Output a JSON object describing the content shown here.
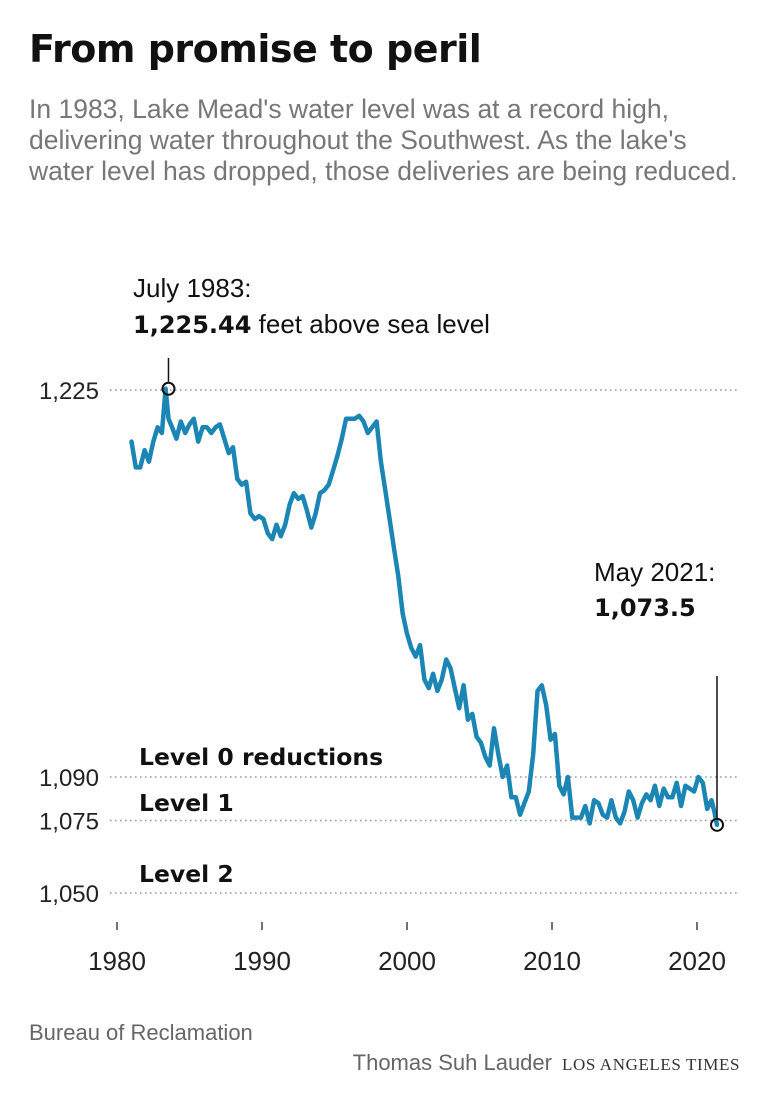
{
  "header": {
    "title": "From promise to peril",
    "subtitle": "In 1983, Lake Mead's water level was at a record high, delivering water throughout the Southwest. As the lake's water level has dropped, those deliveries are being reduced."
  },
  "chart_data": {
    "type": "line",
    "xlabel": "",
    "ylabel": "",
    "xlim": [
      1980,
      2022.5
    ],
    "ylim": [
      1040,
      1240
    ],
    "x_ticks": [
      1980,
      1990,
      2000,
      2010,
      2020
    ],
    "x_tick_labels": [
      "1980",
      "1990",
      "2000",
      "2010",
      "2020"
    ],
    "y_ticks": [
      1050,
      1075,
      1090,
      1225
    ],
    "y_tick_labels": [
      "1,050",
      "1,075",
      "1,090",
      "1,225"
    ],
    "grid": "dotted horizontal at y ticks",
    "series": [
      {
        "color": "#1b86b4",
        "x": [
          1981.0,
          1981.3,
          1981.6,
          1981.9,
          1982.2,
          1982.5,
          1982.8,
          1983.1,
          1983.35,
          1983.55,
          1983.8,
          1984.1,
          1984.4,
          1984.7,
          1985.0,
          1985.3,
          1985.6,
          1985.9,
          1986.2,
          1986.5,
          1986.8,
          1987.1,
          1987.4,
          1987.7,
          1988.0,
          1988.3,
          1988.6,
          1988.9,
          1989.2,
          1989.5,
          1989.8,
          1990.1,
          1990.4,
          1990.7,
          1991.0,
          1991.3,
          1991.6,
          1991.9,
          1992.2,
          1992.5,
          1992.8,
          1993.1,
          1993.4,
          1993.7,
          1994.0,
          1994.3,
          1994.6,
          1994.9,
          1995.2,
          1995.5,
          1995.8,
          1996.1,
          1996.4,
          1996.7,
          1997.0,
          1997.3,
          1997.6,
          1997.9,
          1998.2,
          1998.5,
          1998.8,
          1999.1,
          1999.4,
          1999.7,
          2000.0,
          2000.3,
          2000.6,
          2000.9,
          2001.2,
          2001.5,
          2001.8,
          2002.1,
          2002.4,
          2002.7,
          2003.0,
          2003.3,
          2003.6,
          2003.9,
          2004.2,
          2004.5,
          2004.8,
          2005.1,
          2005.4,
          2005.7,
          2006.0,
          2006.3,
          2006.6,
          2006.9,
          2007.2,
          2007.5,
          2007.8,
          2008.1,
          2008.4,
          2008.7,
          2009.0,
          2009.3,
          2009.6,
          2009.9,
          2010.2,
          2010.5,
          2010.8,
          2011.1,
          2011.4,
          2011.7,
          2012.0,
          2012.3,
          2012.6,
          2012.9,
          2013.2,
          2013.5,
          2013.8,
          2014.1,
          2014.4,
          2014.7,
          2015.0,
          2015.3,
          2015.6,
          2015.9,
          2016.2,
          2016.5,
          2016.8,
          2017.1,
          2017.4,
          2017.7,
          2018.0,
          2018.3,
          2018.6,
          2018.9,
          2019.2,
          2019.5,
          2019.8,
          2020.1,
          2020.4,
          2020.7,
          2021.0,
          2021.2,
          2021.38
        ],
        "y": [
          1207,
          1198,
          1198,
          1204,
          1200,
          1207,
          1212,
          1210,
          1225.44,
          1215,
          1212,
          1208,
          1214,
          1210,
          1213,
          1215,
          1207,
          1212,
          1212,
          1210,
          1212,
          1213,
          1208,
          1203,
          1205,
          1194,
          1192,
          1193,
          1182,
          1180,
          1181,
          1180,
          1175,
          1173,
          1178,
          1174,
          1178,
          1185,
          1189,
          1187,
          1188,
          1183,
          1177,
          1182,
          1189,
          1190,
          1192,
          1197,
          1202,
          1208,
          1215,
          1215,
          1215,
          1216,
          1214,
          1210,
          1212,
          1214,
          1200,
          1190,
          1180,
          1170,
          1160,
          1147,
          1140,
          1135,
          1132,
          1136,
          1124,
          1121,
          1126,
          1120,
          1124,
          1131,
          1128,
          1121,
          1114,
          1122,
          1110,
          1112,
          1104,
          1102,
          1097,
          1094,
          1107,
          1098,
          1090,
          1094,
          1083,
          1083,
          1077,
          1081,
          1085,
          1098,
          1120,
          1122,
          1115,
          1103,
          1105,
          1087,
          1084,
          1090,
          1076,
          1076,
          1076,
          1080,
          1074,
          1082,
          1081,
          1077,
          1076,
          1082,
          1076,
          1074,
          1078,
          1085,
          1082,
          1076,
          1081,
          1084,
          1082,
          1087,
          1080,
          1086,
          1083,
          1083,
          1088,
          1080,
          1087,
          1086,
          1085,
          1090,
          1088,
          1079,
          1082,
          1078,
          1073.5
        ]
      }
    ],
    "reference_lines": [
      {
        "y": 1090,
        "label": "Level 0 reductions"
      },
      {
        "y": 1075,
        "label": "Level 1"
      },
      {
        "y": 1050,
        "label": "Level 2"
      }
    ],
    "annotations": [
      {
        "x": 1983.55,
        "y": 1225.44,
        "line1": "July 1983:",
        "value": "1,225.44",
        "suffix": "feet above sea level"
      },
      {
        "x": 2021.38,
        "y": 1073.5,
        "line1": "May 2021:",
        "value": "1,073.5",
        "suffix": ""
      }
    ]
  },
  "footer": {
    "source": "Bureau of Reclamation",
    "byline": "Thomas Suh Lauder",
    "brand": "LOS ANGELES TIMES"
  }
}
